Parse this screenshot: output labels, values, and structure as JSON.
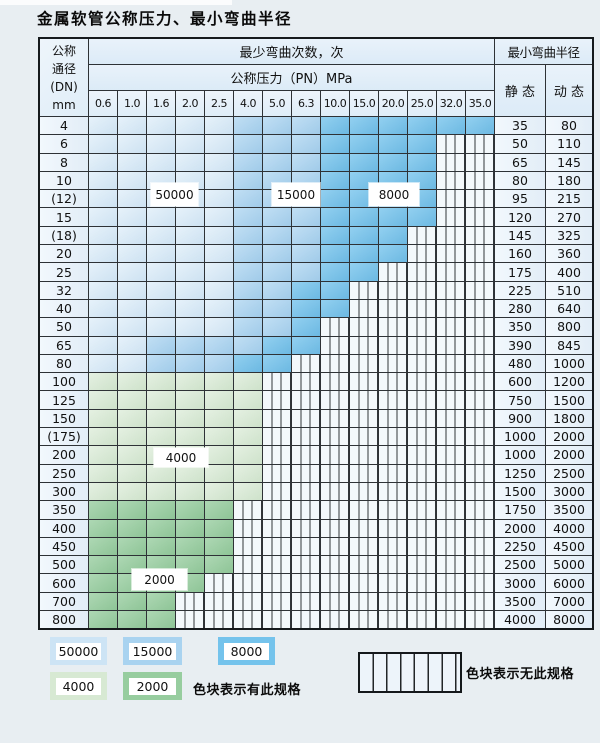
{
  "title": "金属软管公称压力、最小弯曲半径",
  "colors": {
    "band_50000": "#d6e9f7",
    "band_15000": "#a9d3f0",
    "band_8000": "#74c3ec",
    "band_4000": "#d7e9d3",
    "band_2000": "#97cd9f",
    "page_bg": "#e8eef2",
    "grid_line": "#2e3236"
  },
  "table": {
    "corner": {
      "line1": "公称",
      "line2": "通径",
      "line3": "(DN)",
      "line4": "mm"
    },
    "cycles_header": "最少弯曲次数，次",
    "pn_header": "公称压力（PN）MPa",
    "radius_header": "最小弯曲半径",
    "static_header": "静 态",
    "dynamic_header": "动 态",
    "pressures": [
      "0.6",
      "1.0",
      "1.6",
      "2.0",
      "2.5",
      "4.0",
      "5.0",
      "6.3",
      "10.0",
      "15.0",
      "20.0",
      "25.0",
      "32.0",
      "35.0"
    ],
    "band_key": {
      "b1": "50000",
      "b2": "15000",
      "b3": "8000",
      "g1": "4000",
      "g2": "2000",
      "h": "no-spec"
    },
    "rows": [
      {
        "dn": "4",
        "cells": [
          "b1",
          "b1",
          "b1",
          "b1",
          "b1",
          "b2",
          "b2",
          "b2",
          "b3",
          "b3",
          "b3",
          "b3",
          "b3",
          "b3"
        ],
        "static": "35",
        "dynamic": "80"
      },
      {
        "dn": "6",
        "cells": [
          "b1",
          "b1",
          "b1",
          "b1",
          "b1",
          "b2",
          "b2",
          "b2",
          "b3",
          "b3",
          "b3",
          "b3",
          "h",
          "h"
        ],
        "static": "50",
        "dynamic": "110"
      },
      {
        "dn": "8",
        "cells": [
          "b1",
          "b1",
          "b1",
          "b1",
          "b1",
          "b2",
          "b2",
          "b2",
          "b3",
          "b3",
          "b3",
          "b3",
          "h",
          "h"
        ],
        "static": "65",
        "dynamic": "145"
      },
      {
        "dn": "10",
        "cells": [
          "b1",
          "b1",
          "b1",
          "b1",
          "b1",
          "b2",
          "b2",
          "b2",
          "b3",
          "b3",
          "b3",
          "b3",
          "h",
          "h"
        ],
        "static": "80",
        "dynamic": "180"
      },
      {
        "dn": "(12)",
        "cells": [
          "b1",
          "b1",
          "b1",
          "b1",
          "b1",
          "b2",
          "b2",
          "b2",
          "b3",
          "b3",
          "b3",
          "b3",
          "h",
          "h"
        ],
        "static": "95",
        "dynamic": "215"
      },
      {
        "dn": "15",
        "cells": [
          "b1",
          "b1",
          "b1",
          "b1",
          "b1",
          "b2",
          "b2",
          "b2",
          "b3",
          "b3",
          "b3",
          "b3",
          "h",
          "h"
        ],
        "static": "120",
        "dynamic": "270"
      },
      {
        "dn": "(18)",
        "cells": [
          "b1",
          "b1",
          "b1",
          "b1",
          "b1",
          "b2",
          "b2",
          "b2",
          "b3",
          "b3",
          "b3",
          "h",
          "h",
          "h"
        ],
        "static": "145",
        "dynamic": "325"
      },
      {
        "dn": "20",
        "cells": [
          "b1",
          "b1",
          "b1",
          "b1",
          "b1",
          "b2",
          "b2",
          "b2",
          "b3",
          "b3",
          "b3",
          "h",
          "h",
          "h"
        ],
        "static": "160",
        "dynamic": "360"
      },
      {
        "dn": "25",
        "cells": [
          "b1",
          "b1",
          "b1",
          "b1",
          "b1",
          "b2",
          "b2",
          "b2",
          "b3",
          "b3",
          "h",
          "h",
          "h",
          "h"
        ],
        "static": "175",
        "dynamic": "400"
      },
      {
        "dn": "32",
        "cells": [
          "b1",
          "b1",
          "b1",
          "b1",
          "b1",
          "b2",
          "b2",
          "b3",
          "b3",
          "h",
          "h",
          "h",
          "h",
          "h"
        ],
        "static": "225",
        "dynamic": "510"
      },
      {
        "dn": "40",
        "cells": [
          "b1",
          "b1",
          "b1",
          "b1",
          "b1",
          "b2",
          "b2",
          "b3",
          "b3",
          "h",
          "h",
          "h",
          "h",
          "h"
        ],
        "static": "280",
        "dynamic": "640"
      },
      {
        "dn": "50",
        "cells": [
          "b1",
          "b1",
          "b1",
          "b1",
          "b1",
          "b2",
          "b2",
          "b3",
          "h",
          "h",
          "h",
          "h",
          "h",
          "h"
        ],
        "static": "350",
        "dynamic": "800"
      },
      {
        "dn": "65",
        "cells": [
          "b1",
          "b1",
          "b2",
          "b2",
          "b2",
          "b2",
          "b3",
          "b3",
          "h",
          "h",
          "h",
          "h",
          "h",
          "h"
        ],
        "static": "390",
        "dynamic": "845"
      },
      {
        "dn": "80",
        "cells": [
          "b1",
          "b1",
          "b2",
          "b2",
          "b2",
          "b3",
          "b3",
          "h",
          "h",
          "h",
          "h",
          "h",
          "h",
          "h"
        ],
        "static": "480",
        "dynamic": "1000"
      },
      {
        "dn": "100",
        "cells": [
          "g1",
          "g1",
          "g1",
          "g1",
          "g1",
          "g1",
          "h",
          "h",
          "h",
          "h",
          "h",
          "h",
          "h",
          "h"
        ],
        "static": "600",
        "dynamic": "1200"
      },
      {
        "dn": "125",
        "cells": [
          "g1",
          "g1",
          "g1",
          "g1",
          "g1",
          "g1",
          "h",
          "h",
          "h",
          "h",
          "h",
          "h",
          "h",
          "h"
        ],
        "static": "750",
        "dynamic": "1500"
      },
      {
        "dn": "150",
        "cells": [
          "g1",
          "g1",
          "g1",
          "g1",
          "g1",
          "g1",
          "h",
          "h",
          "h",
          "h",
          "h",
          "h",
          "h",
          "h"
        ],
        "static": "900",
        "dynamic": "1800"
      },
      {
        "dn": "(175)",
        "cells": [
          "g1",
          "g1",
          "g1",
          "g1",
          "g1",
          "g1",
          "h",
          "h",
          "h",
          "h",
          "h",
          "h",
          "h",
          "h"
        ],
        "static": "1000",
        "dynamic": "2000"
      },
      {
        "dn": "200",
        "cells": [
          "g1",
          "g1",
          "g1",
          "g1",
          "g1",
          "g1",
          "h",
          "h",
          "h",
          "h",
          "h",
          "h",
          "h",
          "h"
        ],
        "static": "1000",
        "dynamic": "2000"
      },
      {
        "dn": "250",
        "cells": [
          "g1",
          "g1",
          "g1",
          "g1",
          "g1",
          "g1",
          "h",
          "h",
          "h",
          "h",
          "h",
          "h",
          "h",
          "h"
        ],
        "static": "1250",
        "dynamic": "2500"
      },
      {
        "dn": "300",
        "cells": [
          "g1",
          "g1",
          "g1",
          "g1",
          "g1",
          "g1",
          "h",
          "h",
          "h",
          "h",
          "h",
          "h",
          "h",
          "h"
        ],
        "static": "1500",
        "dynamic": "3000"
      },
      {
        "dn": "350",
        "cells": [
          "g2",
          "g2",
          "g2",
          "g2",
          "g2",
          "h",
          "h",
          "h",
          "h",
          "h",
          "h",
          "h",
          "h",
          "h"
        ],
        "static": "1750",
        "dynamic": "3500"
      },
      {
        "dn": "400",
        "cells": [
          "g2",
          "g2",
          "g2",
          "g2",
          "g2",
          "h",
          "h",
          "h",
          "h",
          "h",
          "h",
          "h",
          "h",
          "h"
        ],
        "static": "2000",
        "dynamic": "4000"
      },
      {
        "dn": "450",
        "cells": [
          "g2",
          "g2",
          "g2",
          "g2",
          "g2",
          "h",
          "h",
          "h",
          "h",
          "h",
          "h",
          "h",
          "h",
          "h"
        ],
        "static": "2250",
        "dynamic": "4500"
      },
      {
        "dn": "500",
        "cells": [
          "g2",
          "g2",
          "g2",
          "g2",
          "g2",
          "h",
          "h",
          "h",
          "h",
          "h",
          "h",
          "h",
          "h",
          "h"
        ],
        "static": "2500",
        "dynamic": "5000"
      },
      {
        "dn": "600",
        "cells": [
          "g2",
          "g2",
          "g2",
          "g2",
          "h",
          "h",
          "h",
          "h",
          "h",
          "h",
          "h",
          "h",
          "h",
          "h"
        ],
        "static": "3000",
        "dynamic": "6000"
      },
      {
        "dn": "700",
        "cells": [
          "g2",
          "g2",
          "g2",
          "h",
          "h",
          "h",
          "h",
          "h",
          "h",
          "h",
          "h",
          "h",
          "h",
          "h"
        ],
        "static": "3500",
        "dynamic": "7000"
      },
      {
        "dn": "800",
        "cells": [
          "g2",
          "g2",
          "g2",
          "h",
          "h",
          "h",
          "h",
          "h",
          "h",
          "h",
          "h",
          "h",
          "h",
          "h"
        ],
        "static": "4000",
        "dynamic": "8000"
      }
    ]
  },
  "overlay_labels": [
    {
      "id": "label-50000",
      "text": "50000"
    },
    {
      "id": "label-15000",
      "text": "15000"
    },
    {
      "id": "label-8000",
      "text": "8000"
    },
    {
      "id": "label-4000",
      "text": "4000"
    },
    {
      "id": "label-2000",
      "text": "2000"
    }
  ],
  "legend": {
    "swatches": [
      {
        "id": "sw-50000",
        "label": "50000",
        "color": "#cde4f5"
      },
      {
        "id": "sw-15000",
        "label": "15000",
        "color": "#a9d3f0"
      },
      {
        "id": "sw-8000",
        "label": "8000",
        "color": "#74c3ec"
      },
      {
        "id": "sw-4000",
        "label": "4000",
        "color": "#d7e9d3"
      },
      {
        "id": "sw-2000",
        "label": "2000",
        "color": "#97cd9f"
      }
    ],
    "has_spec_note": "色块表示有此规格",
    "no_spec_note": "色块表示无此规格"
  }
}
